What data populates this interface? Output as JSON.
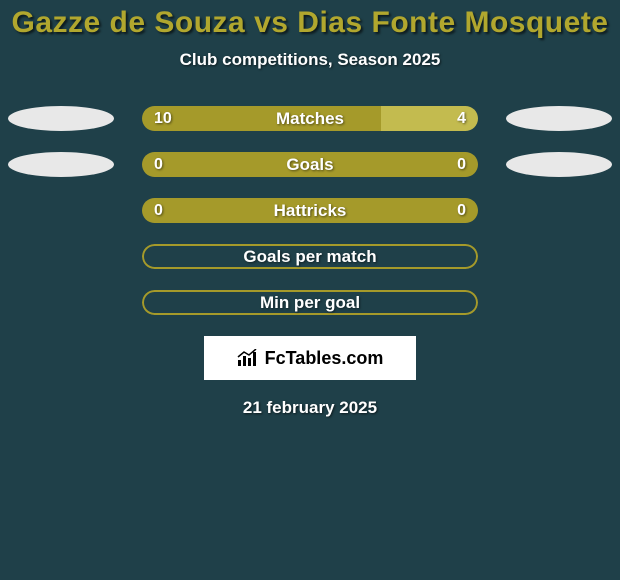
{
  "title_color": "#b1a72e",
  "background_color": "#1f4049",
  "text_color": "#ffffff",
  "player1": "Gazze de Souza",
  "vs": "vs",
  "player2": "Dias Fonte Mosquete",
  "subtitle": "Club competitions, Season 2025",
  "ellipse_color": "#e8e8e8",
  "bar_color_main": "#a59a2a",
  "bar_color_alt": "#c3bb4f",
  "bar_border_color": "#a59a2a",
  "rows": [
    {
      "label": "Matches",
      "left_val": "10",
      "right_val": "4",
      "left_pct": 71,
      "right_pct": 29,
      "left_color": "#a59a2a",
      "right_color": "#c3bb4f",
      "show_ellipses": true
    },
    {
      "label": "Goals",
      "left_val": "0",
      "right_val": "0",
      "left_pct": 50,
      "right_pct": 50,
      "left_color": "#a59a2a",
      "right_color": "#a59a2a",
      "show_ellipses": true
    },
    {
      "label": "Hattricks",
      "left_val": "0",
      "right_val": "0",
      "left_pct": 50,
      "right_pct": 50,
      "left_color": "#a59a2a",
      "right_color": "#a59a2a",
      "show_ellipses": false
    },
    {
      "label": "Goals per match",
      "single": true,
      "show_ellipses": false
    },
    {
      "label": "Min per goal",
      "single": true,
      "show_ellipses": false
    }
  ],
  "logo_text": "FcTables.com",
  "footer_date": "21 february 2025"
}
